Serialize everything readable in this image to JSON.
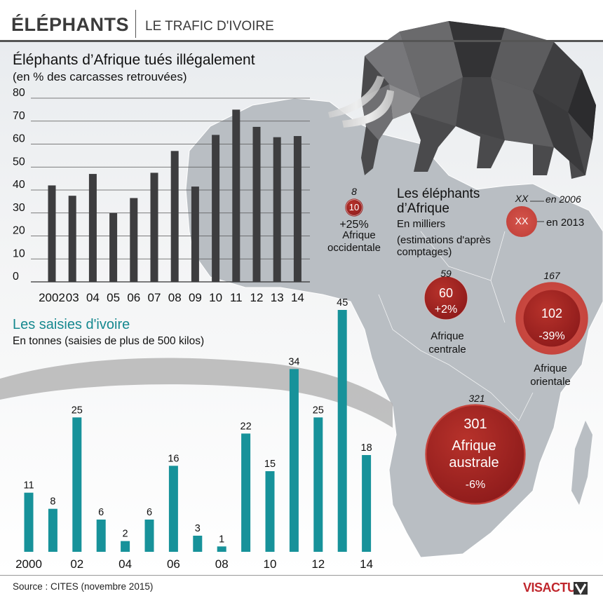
{
  "header": {
    "title": "ÉLÉPHANTS",
    "subtitle": "LE TRAFIC D'IVOIRE"
  },
  "footer": {
    "source": "Source : CITES (novembre 2015)",
    "logo": "VISACTU"
  },
  "colors": {
    "chart1_bar": "#3d3d3f",
    "chart2_bar": "#17929a",
    "circle": "#9b1c1c",
    "circle_light": "#b7322b",
    "continent": "#b9bec3"
  },
  "chart_data": [
    {
      "type": "bar",
      "title": "Éléphants d’Afrique tués illégalement",
      "subtitle": "(en % des carcasses retrouvées)",
      "categories": [
        "2002",
        "03",
        "04",
        "05",
        "06",
        "07",
        "08",
        "09",
        "10",
        "11",
        "12",
        "13",
        "14"
      ],
      "values": [
        42,
        37.5,
        47,
        30,
        36.5,
        47.5,
        57,
        41.5,
        64,
        75,
        67.5,
        63,
        63.5
      ],
      "yticks": [
        0,
        10,
        20,
        30,
        40,
        50,
        60,
        70,
        80
      ],
      "ylim": [
        0,
        80
      ],
      "grid": true
    },
    {
      "type": "bar",
      "title": "Les saisies d'ivoire",
      "subtitle": "En tonnes (saisies de plus de 500 kilos)",
      "categories": [
        "2000",
        "01",
        "02",
        "03",
        "04",
        "05",
        "06",
        "07",
        "08",
        "09",
        "10",
        "11",
        "12",
        "13",
        "14"
      ],
      "tick_labels": [
        "2000",
        "02",
        "04",
        "06",
        "08",
        "10",
        "12",
        "14"
      ],
      "values": [
        11,
        8,
        25,
        6,
        2,
        6,
        16,
        3,
        1,
        22,
        15,
        34,
        25,
        45,
        18
      ],
      "ylim": [
        0,
        45
      ],
      "data_labels": true,
      "grid": false
    },
    {
      "type": "bubble",
      "title": "Les éléphants d’Afrique",
      "subtitle": "En milliers (estimations d'après comptages)",
      "legend": {
        "value_2006": "XX",
        "label_2006": "en 2006",
        "value_2013": "XX",
        "label_2013": "en 2013"
      },
      "regions": [
        {
          "name": "Afrique occidentale",
          "value_2006": 8,
          "value_2013": 10,
          "change": "+25%"
        },
        {
          "name": "Afrique centrale",
          "value_2006": 59,
          "value_2013": 60,
          "change": "+2%"
        },
        {
          "name": "Afrique orientale",
          "value_2006": 167,
          "value_2013": 102,
          "change": "-39%"
        },
        {
          "name": "Afrique australe",
          "value_2006": 321,
          "value_2013": 301,
          "change": "-6%"
        }
      ]
    }
  ]
}
